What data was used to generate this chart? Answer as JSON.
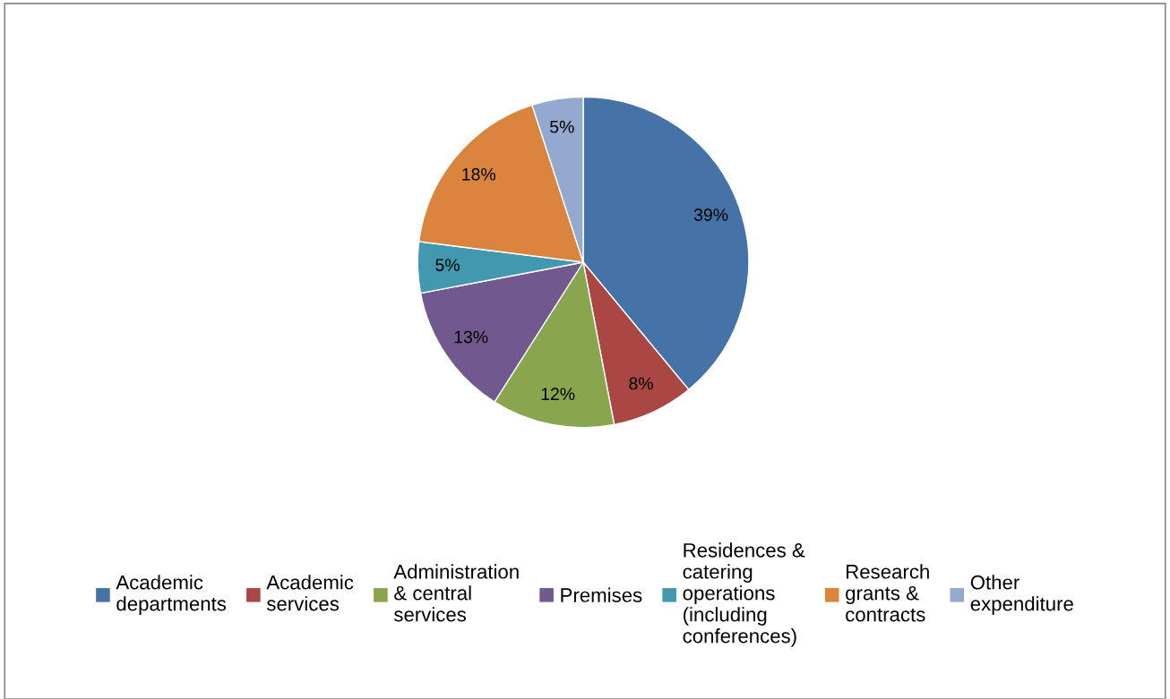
{
  "chart_data": {
    "type": "pie",
    "categories": [
      "Academic\ndepartments",
      "Academic\nservices",
      "Administration\n& central\nservices",
      "Premises",
      "Residences &\ncatering\noperations\n(including\nconferences)",
      "Research\ngrants &\ncontracts",
      "Other\nexpenditure"
    ],
    "values": [
      39,
      8,
      12,
      13,
      5,
      18,
      5
    ],
    "value_labels": [
      "39%",
      "8%",
      "12%",
      "13%",
      "5%",
      "18%",
      "5%"
    ],
    "colors": [
      "#4572a7",
      "#aa4643",
      "#89a54e",
      "#71588f",
      "#4198af",
      "#db843d",
      "#93a9cf"
    ],
    "legend": "bottom"
  }
}
